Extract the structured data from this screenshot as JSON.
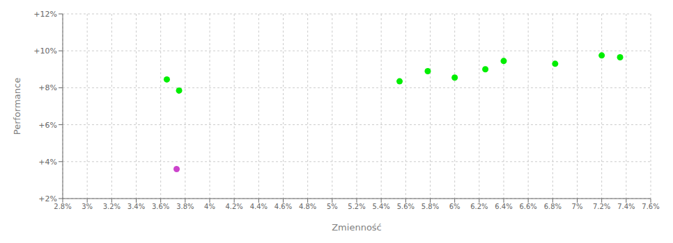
{
  "chart_data": {
    "type": "scatter",
    "xlabel": "Zmienność",
    "ylabel": "Performance",
    "xlim": [
      0.028,
      0.076
    ],
    "ylim": [
      0.02,
      0.12
    ],
    "xticks": [
      {
        "value": 0.028,
        "label": "2.8%"
      },
      {
        "value": 0.03,
        "label": "3%"
      },
      {
        "value": 0.032,
        "label": "3.2%"
      },
      {
        "value": 0.034,
        "label": "3.4%"
      },
      {
        "value": 0.036,
        "label": "3.6%"
      },
      {
        "value": 0.038,
        "label": "3.8%"
      },
      {
        "value": 0.04,
        "label": "4%"
      },
      {
        "value": 0.042,
        "label": "4.2%"
      },
      {
        "value": 0.044,
        "label": "4.4%"
      },
      {
        "value": 0.046,
        "label": "4.6%"
      },
      {
        "value": 0.048,
        "label": "4.8%"
      },
      {
        "value": 0.05,
        "label": "5%"
      },
      {
        "value": 0.052,
        "label": "5.2%"
      },
      {
        "value": 0.054,
        "label": "5.4%"
      },
      {
        "value": 0.056,
        "label": "5.6%"
      },
      {
        "value": 0.058,
        "label": "5.8%"
      },
      {
        "value": 0.06,
        "label": "6%"
      },
      {
        "value": 0.062,
        "label": "6.2%"
      },
      {
        "value": 0.064,
        "label": "6.4%"
      },
      {
        "value": 0.066,
        "label": "6.6%"
      },
      {
        "value": 0.068,
        "label": "6.8%"
      },
      {
        "value": 0.07,
        "label": "7%"
      },
      {
        "value": 0.072,
        "label": "7.2%"
      },
      {
        "value": 0.074,
        "label": "7.4%"
      },
      {
        "value": 0.076,
        "label": "7.6%"
      }
    ],
    "yticks": [
      {
        "value": 0.02,
        "label": "+2%"
      },
      {
        "value": 0.04,
        "label": "+4%"
      },
      {
        "value": 0.06,
        "label": "+6%"
      },
      {
        "value": 0.08,
        "label": "+8%"
      },
      {
        "value": 0.1,
        "label": "+10%"
      },
      {
        "value": 0.12,
        "label": "+12%"
      }
    ],
    "grid": true,
    "series": [
      {
        "color": "#00ee00",
        "x": [
          0.0365,
          0.0375,
          0.0555,
          0.0578,
          0.06,
          0.0625,
          0.064,
          0.0682,
          0.072,
          0.0735
        ],
        "values": [
          0.0845,
          0.0785,
          0.0835,
          0.089,
          0.0855,
          0.09,
          0.0945,
          0.093,
          0.0975,
          0.0965
        ]
      },
      {
        "color": "#cc44cc",
        "x": [
          0.0373
        ],
        "values": [
          0.036
        ]
      }
    ]
  }
}
